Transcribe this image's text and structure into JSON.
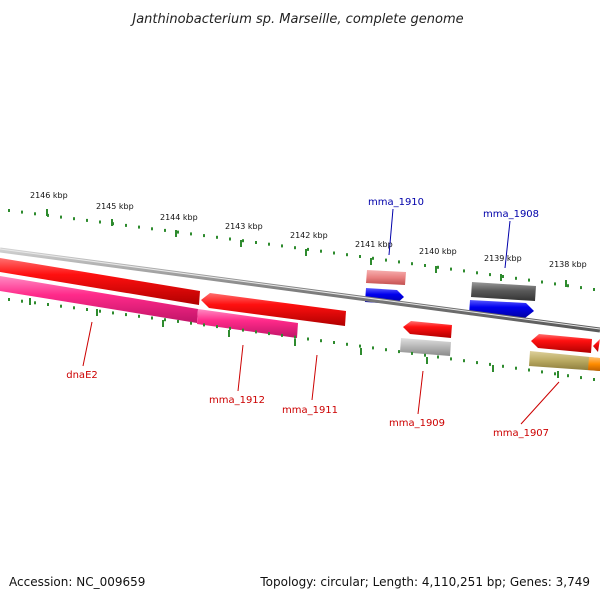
{
  "title": "Janthinobacterium sp. Marseille, complete genome",
  "footer": {
    "accession": "Accession: NC_009659",
    "stats": "Topology: circular; Length: 4,110,251 bp; Genes: 3,749"
  },
  "kbp_labels": [
    "2146 kbp",
    "2145 kbp",
    "2144 kbp",
    "2143 kbp",
    "2142 kbp",
    "2141 kbp",
    "2140 kbp",
    "2139 kbp",
    "2138 kbp"
  ],
  "genes_outer": [
    {
      "name": "mma_1910",
      "color": "#0000aa"
    },
    {
      "name": "mma_1908",
      "color": "#0000aa"
    }
  ],
  "genes_inner": [
    {
      "name": "dnaE2",
      "color": "#cc0000"
    },
    {
      "name": "mma_1912",
      "color": "#cc0000"
    },
    {
      "name": "mma_1911",
      "color": "#cc0000"
    },
    {
      "name": "mma_1909",
      "color": "#cc0000"
    },
    {
      "name": "mma_1907",
      "color": "#cc0000"
    }
  ],
  "colors": {
    "backbone": "#808080",
    "tick": "#2e8b2e",
    "red_gene": "#ee0000",
    "pink_gene": "#ff2a8a",
    "pale_red_gene": "#e98080",
    "blue_gene": "#0000ee",
    "dark_gray_gene": "#5a5a5a",
    "light_gray_gene": "#b5b5b5",
    "olive_gene": "#b8a860",
    "orange_gene": "#ff8c00"
  }
}
